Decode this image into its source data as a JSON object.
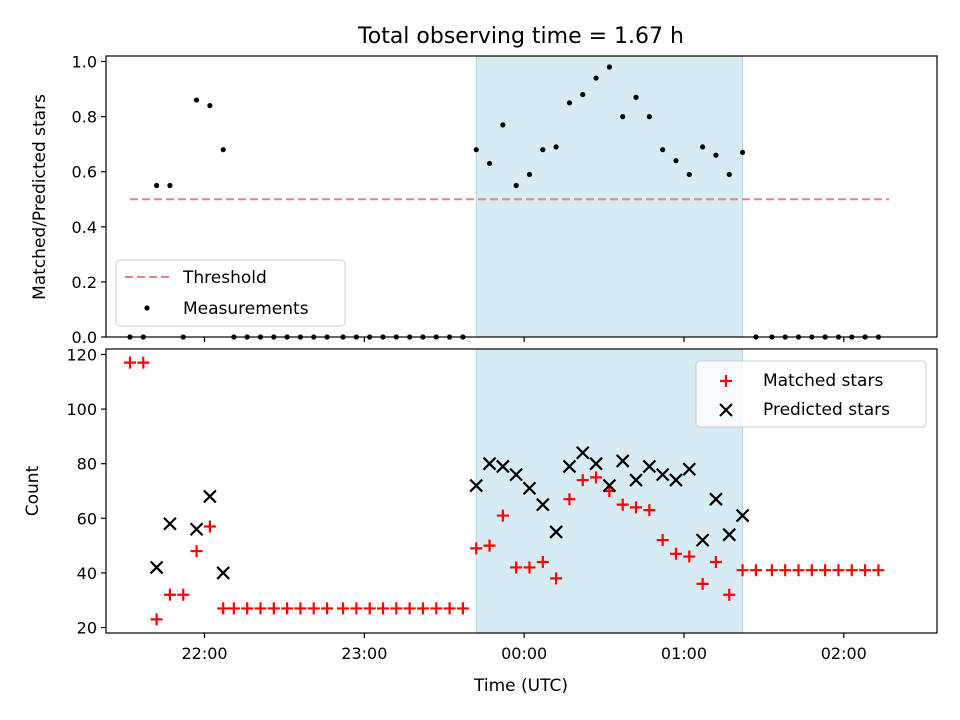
{
  "title": "Total observing time = 1.67 h",
  "colors": {
    "threshold": "#f08080",
    "matched": "#ff0000",
    "predicted": "#000000",
    "shade": "#add8e6"
  },
  "chart_data": [
    {
      "type": "scatter",
      "ylabel": "Matched/Predicted stars",
      "xlim": [
        "21:23",
        "02:35"
      ],
      "ylim": [
        0,
        1.02
      ],
      "yticks": [
        "0.0",
        "0.2",
        "0.4",
        "0.6",
        "0.8",
        "1.0"
      ],
      "shaded_interval": [
        "23:42",
        "01:22"
      ],
      "legend": {
        "placement": "lower-left",
        "entries": [
          "Threshold",
          "Measurements"
        ]
      },
      "series": [
        {
          "name": "Threshold",
          "style": "dashed-line",
          "x": [
            "21:32",
            "02:17"
          ],
          "y": [
            0.5,
            0.5
          ]
        },
        {
          "name": "Measurements",
          "style": "dot",
          "points": [
            [
              "21:32",
              0
            ],
            [
              "21:37",
              0
            ],
            [
              "21:42",
              0.55
            ],
            [
              "21:47",
              0.55
            ],
            [
              "21:52",
              0
            ],
            [
              "21:57",
              0.86
            ],
            [
              "22:02",
              0.84
            ],
            [
              "22:07",
              0.68
            ],
            [
              "22:11",
              0
            ],
            [
              "22:16",
              0
            ],
            [
              "22:21",
              0
            ],
            [
              "22:26",
              0
            ],
            [
              "22:31",
              0
            ],
            [
              "22:36",
              0
            ],
            [
              "22:41",
              0
            ],
            [
              "22:46",
              0
            ],
            [
              "22:52",
              0
            ],
            [
              "22:57",
              0
            ],
            [
              "23:02",
              0
            ],
            [
              "23:07",
              0
            ],
            [
              "23:12",
              0
            ],
            [
              "23:17",
              0
            ],
            [
              "23:22",
              0
            ],
            [
              "23:27",
              0
            ],
            [
              "23:32",
              0
            ],
            [
              "23:37",
              0
            ],
            [
              "23:42",
              0.68
            ],
            [
              "23:47",
              0.63
            ],
            [
              "23:52",
              0.77
            ],
            [
              "23:57",
              0.55
            ],
            [
              "00:02",
              0.59
            ],
            [
              "00:07",
              0.68
            ],
            [
              "00:12",
              0.69
            ],
            [
              "00:17",
              0.85
            ],
            [
              "00:22",
              0.88
            ],
            [
              "00:27",
              0.94
            ],
            [
              "00:32",
              0.98
            ],
            [
              "00:37",
              0.8
            ],
            [
              "00:42",
              0.87
            ],
            [
              "00:47",
              0.8
            ],
            [
              "00:52",
              0.68
            ],
            [
              "00:57",
              0.64
            ],
            [
              "01:02",
              0.59
            ],
            [
              "01:07",
              0.69
            ],
            [
              "01:12",
              0.66
            ],
            [
              "01:17",
              0.59
            ],
            [
              "01:22",
              0.67
            ],
            [
              "01:27",
              0
            ],
            [
              "01:33",
              0
            ],
            [
              "01:38",
              0
            ],
            [
              "01:43",
              0
            ],
            [
              "01:48",
              0
            ],
            [
              "01:53",
              0
            ],
            [
              "01:58",
              0
            ],
            [
              "02:03",
              0
            ],
            [
              "02:08",
              0
            ],
            [
              "02:13",
              0
            ]
          ]
        }
      ]
    },
    {
      "type": "scatter",
      "ylabel": "Count",
      "xlabel": "Time (UTC)",
      "xlim": [
        "21:23",
        "02:35"
      ],
      "ylim": [
        18,
        122
      ],
      "yticks": [
        "20",
        "40",
        "60",
        "80",
        "100",
        "120"
      ],
      "xticks": [
        "22:00",
        "23:00",
        "00:00",
        "01:00",
        "02:00"
      ],
      "shaded_interval": [
        "23:42",
        "01:22"
      ],
      "legend": {
        "placement": "top-right",
        "entries": [
          "Matched stars",
          "Predicted stars"
        ]
      },
      "series": [
        {
          "name": "Matched stars",
          "marker": "+",
          "points": [
            [
              "21:32",
              117
            ],
            [
              "21:37",
              117
            ],
            [
              "21:42",
              23
            ],
            [
              "21:47",
              32
            ],
            [
              "21:52",
              32
            ],
            [
              "21:57",
              48
            ],
            [
              "22:02",
              57
            ],
            [
              "22:07",
              27
            ],
            [
              "22:11",
              27
            ],
            [
              "22:16",
              27
            ],
            [
              "22:21",
              27
            ],
            [
              "22:26",
              27
            ],
            [
              "22:31",
              27
            ],
            [
              "22:36",
              27
            ],
            [
              "22:41",
              27
            ],
            [
              "22:46",
              27
            ],
            [
              "22:52",
              27
            ],
            [
              "22:57",
              27
            ],
            [
              "23:02",
              27
            ],
            [
              "23:07",
              27
            ],
            [
              "23:12",
              27
            ],
            [
              "23:17",
              27
            ],
            [
              "23:22",
              27
            ],
            [
              "23:27",
              27
            ],
            [
              "23:32",
              27
            ],
            [
              "23:37",
              27
            ],
            [
              "23:42",
              49
            ],
            [
              "23:47",
              50
            ],
            [
              "23:52",
              61
            ],
            [
              "23:57",
              42
            ],
            [
              "00:02",
              42
            ],
            [
              "00:07",
              44
            ],
            [
              "00:12",
              38
            ],
            [
              "00:17",
              67
            ],
            [
              "00:22",
              74
            ],
            [
              "00:27",
              75
            ],
            [
              "00:32",
              70
            ],
            [
              "00:37",
              65
            ],
            [
              "00:42",
              64
            ],
            [
              "00:47",
              63
            ],
            [
              "00:52",
              52
            ],
            [
              "00:57",
              47
            ],
            [
              "01:02",
              46
            ],
            [
              "01:07",
              36
            ],
            [
              "01:12",
              44
            ],
            [
              "01:17",
              32
            ],
            [
              "01:22",
              41
            ],
            [
              "01:27",
              41
            ],
            [
              "01:33",
              41
            ],
            [
              "01:38",
              41
            ],
            [
              "01:43",
              41
            ],
            [
              "01:48",
              41
            ],
            [
              "01:53",
              41
            ],
            [
              "01:58",
              41
            ],
            [
              "02:03",
              41
            ],
            [
              "02:08",
              41
            ],
            [
              "02:13",
              41
            ]
          ]
        },
        {
          "name": "Predicted stars",
          "marker": "x",
          "points": [
            [
              "21:42",
              42
            ],
            [
              "21:47",
              58
            ],
            [
              "21:57",
              56
            ],
            [
              "22:02",
              68
            ],
            [
              "22:07",
              40
            ],
            [
              "23:42",
              72
            ],
            [
              "23:47",
              80
            ],
            [
              "23:52",
              79
            ],
            [
              "23:57",
              76
            ],
            [
              "00:02",
              71
            ],
            [
              "00:07",
              65
            ],
            [
              "00:12",
              55
            ],
            [
              "00:17",
              79
            ],
            [
              "00:22",
              84
            ],
            [
              "00:27",
              80
            ],
            [
              "00:32",
              72
            ],
            [
              "00:37",
              81
            ],
            [
              "00:42",
              74
            ],
            [
              "00:47",
              79
            ],
            [
              "00:52",
              76
            ],
            [
              "00:57",
              74
            ],
            [
              "01:02",
              78
            ],
            [
              "01:07",
              52
            ],
            [
              "01:12",
              67
            ],
            [
              "01:17",
              54
            ],
            [
              "01:22",
              61
            ]
          ]
        }
      ]
    }
  ]
}
